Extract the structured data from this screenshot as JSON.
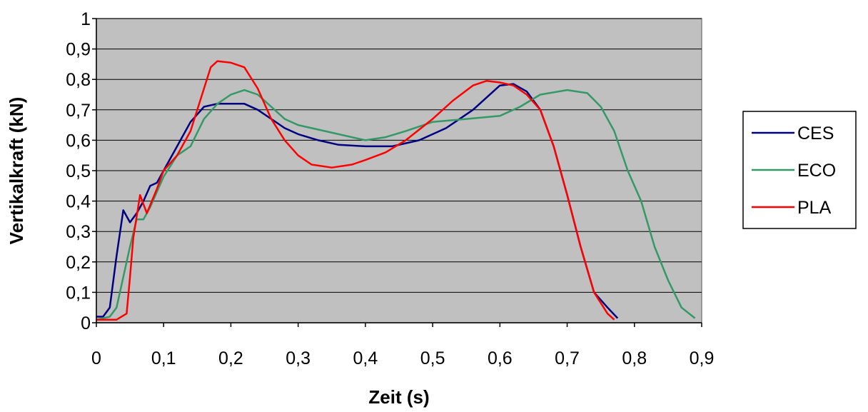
{
  "chart_data": {
    "type": "line",
    "xlabel": "Zeit (s)",
    "ylabel": "Vertikalkraft (kN)",
    "xlim": [
      0,
      0.9
    ],
    "ylim": [
      0,
      1
    ],
    "x_ticks": [
      "0",
      "0,1",
      "0,2",
      "0,3",
      "0,4",
      "0,5",
      "0,6",
      "0,7",
      "0,8",
      "0,9"
    ],
    "y_ticks": [
      "0",
      "0,1",
      "0,2",
      "0,3",
      "0,4",
      "0,5",
      "0,6",
      "0,7",
      "0,8",
      "0,9",
      "1"
    ],
    "grid": "horizontal",
    "plot_background": "#c0c0c0",
    "legend_position": "right",
    "series": [
      {
        "name": "CES",
        "color": "#000080",
        "points": [
          [
            0,
            0.02
          ],
          [
            0.01,
            0.02
          ],
          [
            0.02,
            0.05
          ],
          [
            0.03,
            0.22
          ],
          [
            0.04,
            0.37
          ],
          [
            0.05,
            0.33
          ],
          [
            0.06,
            0.36
          ],
          [
            0.07,
            0.4
          ],
          [
            0.08,
            0.45
          ],
          [
            0.09,
            0.46
          ],
          [
            0.1,
            0.5
          ],
          [
            0.12,
            0.58
          ],
          [
            0.14,
            0.66
          ],
          [
            0.16,
            0.71
          ],
          [
            0.18,
            0.72
          ],
          [
            0.2,
            0.72
          ],
          [
            0.22,
            0.72
          ],
          [
            0.24,
            0.7
          ],
          [
            0.26,
            0.67
          ],
          [
            0.28,
            0.64
          ],
          [
            0.3,
            0.62
          ],
          [
            0.33,
            0.6
          ],
          [
            0.36,
            0.585
          ],
          [
            0.4,
            0.58
          ],
          [
            0.44,
            0.58
          ],
          [
            0.48,
            0.6
          ],
          [
            0.52,
            0.64
          ],
          [
            0.56,
            0.7
          ],
          [
            0.6,
            0.78
          ],
          [
            0.62,
            0.785
          ],
          [
            0.64,
            0.76
          ],
          [
            0.66,
            0.7
          ],
          [
            0.68,
            0.58
          ],
          [
            0.7,
            0.42
          ],
          [
            0.72,
            0.25
          ],
          [
            0.74,
            0.1
          ],
          [
            0.76,
            0.05
          ],
          [
            0.775,
            0.015
          ]
        ]
      },
      {
        "name": "ECO",
        "color": "#339966",
        "points": [
          [
            0,
            0.01
          ],
          [
            0.02,
            0.02
          ],
          [
            0.03,
            0.05
          ],
          [
            0.04,
            0.15
          ],
          [
            0.05,
            0.25
          ],
          [
            0.06,
            0.34
          ],
          [
            0.07,
            0.34
          ],
          [
            0.08,
            0.38
          ],
          [
            0.1,
            0.48
          ],
          [
            0.12,
            0.55
          ],
          [
            0.14,
            0.58
          ],
          [
            0.16,
            0.67
          ],
          [
            0.18,
            0.72
          ],
          [
            0.2,
            0.75
          ],
          [
            0.22,
            0.765
          ],
          [
            0.24,
            0.75
          ],
          [
            0.26,
            0.71
          ],
          [
            0.28,
            0.67
          ],
          [
            0.3,
            0.65
          ],
          [
            0.33,
            0.635
          ],
          [
            0.36,
            0.62
          ],
          [
            0.4,
            0.6
          ],
          [
            0.43,
            0.61
          ],
          [
            0.46,
            0.63
          ],
          [
            0.5,
            0.66
          ],
          [
            0.55,
            0.67
          ],
          [
            0.6,
            0.68
          ],
          [
            0.63,
            0.71
          ],
          [
            0.66,
            0.75
          ],
          [
            0.7,
            0.765
          ],
          [
            0.73,
            0.755
          ],
          [
            0.75,
            0.71
          ],
          [
            0.77,
            0.63
          ],
          [
            0.79,
            0.5
          ],
          [
            0.81,
            0.4
          ],
          [
            0.83,
            0.25
          ],
          [
            0.85,
            0.14
          ],
          [
            0.87,
            0.05
          ],
          [
            0.89,
            0.015
          ]
        ]
      },
      {
        "name": "PLA",
        "color": "#ff0000",
        "points": [
          [
            0,
            0.01
          ],
          [
            0.03,
            0.01
          ],
          [
            0.045,
            0.03
          ],
          [
            0.05,
            0.15
          ],
          [
            0.055,
            0.28
          ],
          [
            0.065,
            0.42
          ],
          [
            0.075,
            0.36
          ],
          [
            0.09,
            0.44
          ],
          [
            0.1,
            0.5
          ],
          [
            0.12,
            0.55
          ],
          [
            0.14,
            0.63
          ],
          [
            0.16,
            0.77
          ],
          [
            0.17,
            0.84
          ],
          [
            0.18,
            0.86
          ],
          [
            0.2,
            0.855
          ],
          [
            0.22,
            0.84
          ],
          [
            0.24,
            0.77
          ],
          [
            0.26,
            0.67
          ],
          [
            0.28,
            0.6
          ],
          [
            0.3,
            0.55
          ],
          [
            0.32,
            0.52
          ],
          [
            0.35,
            0.51
          ],
          [
            0.38,
            0.52
          ],
          [
            0.4,
            0.535
          ],
          [
            0.43,
            0.56
          ],
          [
            0.46,
            0.6
          ],
          [
            0.5,
            0.67
          ],
          [
            0.53,
            0.73
          ],
          [
            0.56,
            0.78
          ],
          [
            0.58,
            0.795
          ],
          [
            0.6,
            0.79
          ],
          [
            0.62,
            0.78
          ],
          [
            0.64,
            0.75
          ],
          [
            0.66,
            0.7
          ],
          [
            0.68,
            0.58
          ],
          [
            0.7,
            0.42
          ],
          [
            0.72,
            0.25
          ],
          [
            0.74,
            0.1
          ],
          [
            0.76,
            0.03
          ],
          [
            0.77,
            0.01
          ]
        ]
      }
    ]
  }
}
